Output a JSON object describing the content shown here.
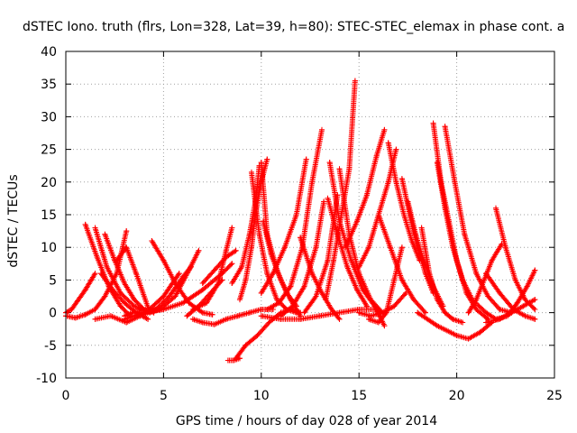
{
  "chart_data": {
    "type": "scatter",
    "title": "dSTEC Iono. truth (flrs, Lon=328, Lat=39, h=80): STEC-STEC_elemax in phase cont. a",
    "xlabel": "GPS time / hours of day 028 of year 2014",
    "ylabel": "dSTEC  / TECUs",
    "xlim": [
      0,
      25
    ],
    "ylim": [
      -10,
      40
    ],
    "x_ticks": [
      0,
      5,
      10,
      15,
      20,
      25
    ],
    "y_ticks": [
      -10,
      -5,
      0,
      5,
      10,
      15,
      20,
      25,
      30,
      35,
      40
    ],
    "x_tick_labels": [
      "0",
      "5",
      "10",
      "15",
      "20",
      "25"
    ],
    "y_tick_labels": [
      "-10",
      "-5",
      "0",
      "5",
      "10",
      "15",
      "20",
      "25",
      "30",
      "35",
      "40"
    ],
    "grid": true,
    "marker": "+",
    "color": "#ff0000",
    "series": [
      {
        "x": [
          0.0,
          0.3,
          0.6,
          1.0,
          1.3,
          1.5
        ],
        "y": [
          0.0,
          0.5,
          1.8,
          3.5,
          5.0,
          6.0
        ]
      },
      {
        "x": [
          0.0,
          0.5,
          1.0,
          1.5,
          2.0,
          2.6,
          3.1
        ],
        "y": [
          -0.5,
          -0.8,
          -0.3,
          0.5,
          2.5,
          6.0,
          12.5
        ]
      },
      {
        "x": [
          1.0,
          1.6,
          2.2,
          2.8,
          3.3
        ],
        "y": [
          13.5,
          8.5,
          4.0,
          1.0,
          -0.5
        ]
      },
      {
        "x": [
          1.5,
          2.1,
          2.8,
          3.5,
          4.2,
          5.0
        ],
        "y": [
          13.0,
          7.0,
          3.0,
          1.0,
          0.2,
          0.5
        ]
      },
      {
        "x": [
          1.8,
          2.4,
          3.0,
          3.6,
          4.2
        ],
        "y": [
          6.0,
          3.5,
          1.5,
          0.0,
          -1.0
        ]
      },
      {
        "x": [
          2.0,
          2.5,
          3.0,
          3.5,
          4.0,
          4.5
        ],
        "y": [
          12.0,
          8.0,
          4.5,
          2.0,
          0.5,
          0.0
        ]
      },
      {
        "x": [
          1.5,
          2.3,
          3.1,
          3.8,
          4.6,
          5.3,
          6.0,
          6.4
        ],
        "y": [
          -1.0,
          -0.5,
          -1.5,
          -0.5,
          0.5,
          2.5,
          5.5,
          7.0
        ]
      },
      {
        "x": [
          2.6,
          3.1,
          3.6,
          4.3
        ],
        "y": [
          8.0,
          10.0,
          6.0,
          0.0
        ]
      },
      {
        "x": [
          3.0,
          3.6,
          4.2,
          5.0,
          5.8
        ],
        "y": [
          -0.5,
          0.2,
          0.3,
          2.5,
          6.0
        ]
      },
      {
        "x": [
          4.4,
          5.0,
          5.6,
          6.3,
          7.0,
          7.5
        ],
        "y": [
          11.0,
          8.0,
          4.5,
          1.5,
          0.0,
          -0.3
        ]
      },
      {
        "x": [
          4.0,
          4.8,
          5.6,
          6.3,
          6.8
        ],
        "y": [
          0.0,
          0.5,
          2.5,
          6.5,
          9.5
        ]
      },
      {
        "x": [
          3.0,
          4.0,
          5.0,
          6.0,
          7.0,
          8.0,
          8.5
        ],
        "y": [
          -1.0,
          0.0,
          0.5,
          1.5,
          3.5,
          6.0,
          7.5
        ]
      },
      {
        "x": [
          6.2,
          6.8,
          7.4,
          8.0
        ],
        "y": [
          -0.5,
          1.0,
          3.0,
          5.0
        ]
      },
      {
        "x": [
          7.0,
          7.6,
          8.2,
          8.7
        ],
        "y": [
          4.5,
          6.5,
          8.5,
          9.5
        ]
      },
      {
        "x": [
          6.5,
          7.2,
          7.8,
          8.2,
          8.5
        ],
        "y": [
          0.5,
          1.5,
          4.5,
          9.5,
          13.0
        ]
      },
      {
        "x": [
          6.5,
          7.0,
          7.6,
          8.2,
          8.8,
          9.4,
          10.0,
          10.6
        ],
        "y": [
          -1.0,
          -1.5,
          -1.8,
          -1.0,
          -0.5,
          0.0,
          0.5,
          0.5
        ]
      },
      {
        "x": [
          8.3,
          8.6,
          8.9
        ],
        "y": [
          -7.3,
          -7.3,
          -7.0
        ]
      },
      {
        "x": [
          8.7,
          9.2,
          9.8,
          10.4,
          11.0,
          11.5,
          12.0
        ],
        "y": [
          -7.0,
          -5.0,
          -3.5,
          -1.5,
          0.0,
          0.5,
          0.0
        ]
      },
      {
        "x": [
          8.9,
          9.2,
          9.5,
          9.7,
          10.0,
          10.3
        ],
        "y": [
          2.0,
          5.0,
          10.0,
          15.0,
          20.0,
          23.5
        ]
      },
      {
        "x": [
          8.5,
          9.0,
          9.4,
          9.7,
          9.9
        ],
        "y": [
          4.5,
          7.0,
          12.0,
          17.0,
          22.5
        ]
      },
      {
        "x": [
          9.5,
          9.9,
          10.3,
          10.8,
          11.3,
          11.8
        ],
        "y": [
          21.5,
          12.0,
          6.0,
          2.0,
          0.5,
          0.0
        ]
      },
      {
        "x": [
          10.0,
          10.3,
          10.8,
          11.3,
          11.8
        ],
        "y": [
          23.0,
          12.0,
          6.5,
          3.0,
          1.0
        ]
      },
      {
        "x": [
          10.0,
          10.6,
          11.2,
          11.8,
          12.3
        ],
        "y": [
          3.0,
          6.0,
          10.0,
          15.0,
          23.5
        ]
      },
      {
        "x": [
          10.1,
          10.5,
          11.0,
          11.5,
          12.0
        ],
        "y": [
          14.0,
          9.0,
          5.0,
          2.0,
          -0.5
        ]
      },
      {
        "x": [
          10.3,
          10.9,
          11.5,
          12.1,
          12.6,
          13.1
        ],
        "y": [
          0.5,
          1.5,
          4.0,
          10.0,
          20.0,
          28.0
        ]
      },
      {
        "x": [
          10.0,
          11.0,
          12.0,
          13.0,
          14.0,
          15.0,
          16.0
        ],
        "y": [
          -0.5,
          -1.0,
          -1.0,
          -0.5,
          0.0,
          0.5,
          0.5
        ]
      },
      {
        "x": [
          11.0,
          11.6,
          12.2,
          12.8,
          13.2
        ],
        "y": [
          -0.5,
          1.0,
          4.0,
          10.0,
          17.0
        ]
      },
      {
        "x": [
          12.0,
          12.6,
          13.1,
          13.6,
          14.0
        ],
        "y": [
          11.5,
          6.0,
          3.0,
          0.5,
          -1.0
        ]
      },
      {
        "x": [
          12.2,
          12.8,
          13.4,
          13.9
        ],
        "y": [
          0.0,
          2.5,
          8.0,
          18.0
        ]
      },
      {
        "x": [
          13.4,
          13.9,
          14.4,
          14.9,
          15.4
        ],
        "y": [
          17.5,
          12.0,
          7.0,
          3.5,
          1.0
        ]
      },
      {
        "x": [
          13.3,
          13.7,
          14.1,
          14.5,
          14.8
        ],
        "y": [
          2.0,
          8.0,
          15.0,
          22.0,
          35.5
        ]
      },
      {
        "x": [
          13.5,
          14.0,
          14.6,
          15.2,
          15.8,
          16.3
        ],
        "y": [
          23.0,
          14.0,
          8.0,
          3.5,
          1.0,
          -2.0
        ]
      },
      {
        "x": [
          14.0,
          14.5,
          15.0,
          15.6,
          16.2
        ],
        "y": [
          22.0,
          12.0,
          6.0,
          2.0,
          0.0
        ]
      },
      {
        "x": [
          14.3,
          14.9,
          15.4,
          15.9,
          16.3
        ],
        "y": [
          10.0,
          14.0,
          18.0,
          24.0,
          28.0
        ]
      },
      {
        "x": [
          15.0,
          15.5,
          16.0,
          16.5,
          16.9
        ],
        "y": [
          7.0,
          10.0,
          15.0,
          20.0,
          25.0
        ]
      },
      {
        "x": [
          15.0,
          15.6,
          16.2,
          16.8,
          17.4
        ],
        "y": [
          0.0,
          -0.5,
          0.0,
          1.0,
          3.0
        ]
      },
      {
        "x": [
          15.5,
          16.0,
          16.4,
          16.8,
          17.2
        ],
        "y": [
          -1.0,
          -1.5,
          0.0,
          5.0,
          10.0
        ]
      },
      {
        "x": [
          16.5,
          16.9,
          17.3,
          17.7,
          18.1
        ],
        "y": [
          26.0,
          20.0,
          15.0,
          11.0,
          8.0
        ]
      },
      {
        "x": [
          16.0,
          16.6,
          17.2,
          17.8,
          18.4
        ],
        "y": [
          15.0,
          10.0,
          5.0,
          2.0,
          0.0
        ]
      },
      {
        "x": [
          17.2,
          17.6,
          18.0,
          18.4,
          18.8
        ],
        "y": [
          20.5,
          15.0,
          10.0,
          6.0,
          3.0
        ]
      },
      {
        "x": [
          17.5,
          17.9,
          18.3,
          18.8,
          19.3
        ],
        "y": [
          17.0,
          12.0,
          8.0,
          4.0,
          1.0
        ]
      },
      {
        "x": [
          18.2,
          18.6,
          19.0,
          19.4,
          19.8,
          20.3
        ],
        "y": [
          13.0,
          6.0,
          2.0,
          0.0,
          -1.0,
          -1.5
        ]
      },
      {
        "x": [
          18.8,
          19.2,
          19.6,
          20.0,
          20.5,
          21.0,
          21.6
        ],
        "y": [
          29.0,
          20.0,
          14.0,
          8.0,
          3.0,
          0.5,
          -1.0
        ]
      },
      {
        "x": [
          19.0,
          19.4,
          19.8,
          20.3,
          20.8,
          21.5,
          22.0
        ],
        "y": [
          23.0,
          16.0,
          10.0,
          5.0,
          2.0,
          0.0,
          -1.0
        ]
      },
      {
        "x": [
          19.4,
          19.9,
          20.4,
          21.0,
          21.6,
          22.2,
          22.8
        ],
        "y": [
          28.5,
          20.0,
          12.0,
          6.0,
          2.5,
          0.5,
          0.0
        ]
      },
      {
        "x": [
          18.0,
          19.0,
          20.0,
          20.6,
          21.2,
          21.8
        ],
        "y": [
          0.0,
          -2.0,
          -3.5,
          -4.0,
          -3.0,
          -1.5
        ]
      },
      {
        "x": [
          20.6,
          21.0,
          21.4,
          21.8,
          22.3
        ],
        "y": [
          0.0,
          2.0,
          5.0,
          8.0,
          10.5
        ]
      },
      {
        "x": [
          22.0,
          22.5,
          23.0,
          23.5,
          24.0
        ],
        "y": [
          16.0,
          10.0,
          5.0,
          2.0,
          0.5
        ]
      },
      {
        "x": [
          21.5,
          22.2,
          22.9,
          23.5,
          24.0
        ],
        "y": [
          6.0,
          3.0,
          0.5,
          -0.5,
          -1.0
        ]
      },
      {
        "x": [
          22.0,
          22.6,
          23.1,
          23.6,
          24.0
        ],
        "y": [
          -1.0,
          -0.5,
          1.5,
          4.0,
          6.5
        ]
      },
      {
        "x": [
          21.5,
          22.2,
          22.8,
          23.4,
          24.0
        ],
        "y": [
          -1.5,
          -1.0,
          0.0,
          1.0,
          2.0
        ]
      }
    ]
  }
}
